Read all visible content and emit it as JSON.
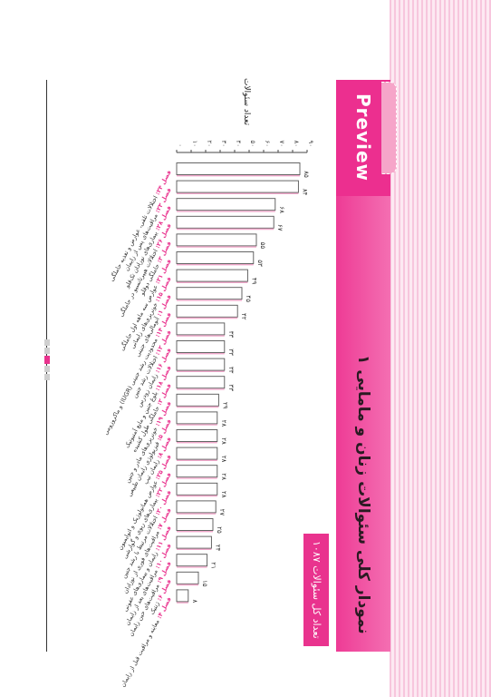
{
  "header": {
    "preview_label": "Preview"
  },
  "title": "نمودار کلی سئوالات زنان و مامایی ۱",
  "total_label": "تعداد کل سئوالات ۱۰۸۷",
  "colors": {
    "accent": "#e9338e",
    "bar_fill": "#ffffff",
    "bar_stroke": "#555555",
    "label_highlight": "#e9338e",
    "label_text": "#333333"
  },
  "chart_data": {
    "type": "bar",
    "orientation": "horizontal-rotated",
    "title": "نمودار کلی سئوالات زنان و مامایی ۱",
    "ylabel": "تعداد سئوالات",
    "ylim": [
      0,
      90
    ],
    "ticks": [
      0,
      10,
      20,
      30,
      40,
      50,
      60,
      70,
      80,
      90
    ],
    "tick_labels": [
      "۰",
      "۱۰",
      "۲۰",
      "۳۰",
      "۴۰",
      "۵۰",
      "۶۰",
      "۷۰",
      "۸۰",
      "۹۰"
    ],
    "grid": false,
    "categories": [
      {
        "chapter": "فصل ۲۴:",
        "name": "اختلالات تلقی، عوارض و تغذیه حاملگی",
        "value": 85,
        "label": "۸۵"
      },
      {
        "chapter": "فصل ۲۳:",
        "name": "مراقبت‌های پس از زایمان",
        "value": 84,
        "label": "۸۴"
      },
      {
        "chapter": "فصل ۲۸:",
        "name": "بیماری‌های نوزادان تک‌قلو",
        "value": 68,
        "label": "۶۸"
      },
      {
        "chapter": "فصل ۲۶:",
        "name": "اختلالات هیپرتانسیو در حاملگی",
        "value": 67,
        "label": "۶۷"
      },
      {
        "chapter": "فصل ۳:",
        "name": "حاملگی دوقلو",
        "value": 55,
        "label": "۵۵"
      },
      {
        "chapter": "فصل ۲۱:",
        "name": "عوارض سه ماهه اول حاملگی",
        "value": 53,
        "label": "۵۳"
      },
      {
        "chapter": "فصل ۱۵:",
        "name": "خونریزی‌های زایمانی",
        "value": 49,
        "label": "۴۹"
      },
      {
        "chapter": "فصل ۱:",
        "name": "آنومالی‌های جنینی",
        "value": 45,
        "label": "۴۵"
      },
      {
        "chapter": "فصل ۱۴:",
        "name": "محدودیت رشد جنینی (IUGR) و ماکروزومی",
        "value": 42,
        "label": "۴۲"
      },
      {
        "chapter": "فصل ۱۲:",
        "name": "اختلالات رشد جنین",
        "value": 33,
        "label": "۳۳"
      },
      {
        "chapter": "فصل ۱۶:",
        "name": "زایمان زودرس",
        "value": 33,
        "label": "۳۳"
      },
      {
        "chapter": "فصل ۱۸:",
        "name": "بلوغ جنین و مایع آمنیوتیک",
        "value": 33,
        "label": "۳۳"
      },
      {
        "chapter": "فصل ۲:",
        "name": "حاملگی طول کشیده",
        "value": 33,
        "label": "۳۳"
      },
      {
        "chapter": "فصل ۱۹:",
        "name": "خونریزی‌های مادر و جنین",
        "value": 29,
        "label": "۲۹"
      },
      {
        "chapter": "فصل ۵:",
        "name": "فیزیولوژی زایمان طبیعی",
        "value": 28,
        "label": "۲۸"
      },
      {
        "chapter": "فصل ۸:",
        "name": "زایمان تیپ",
        "value": 28,
        "label": "۲۸"
      },
      {
        "chapter": "فصل ۲۵:",
        "name": "عوارض هماتولوژیک و اتوایمیون",
        "value": 28,
        "label": "۲۸"
      },
      {
        "chapter": "فصل ۲۲:",
        "name": "بیماری‌های ریوی و گوارشی",
        "value": 28,
        "label": "۲۸"
      },
      {
        "chapter": "فصل ۲۰:",
        "name": "اختلالات مرتبط با رشد جنین",
        "value": 28,
        "label": "۲۸"
      },
      {
        "chapter": "فصل ۷:",
        "name": "مراقبت‌های فوری از نوزادان",
        "value": 27,
        "label": "۲۷"
      },
      {
        "chapter": "فصل ۱۱:",
        "name": "زایمان و بیماری‌های عفونی",
        "value": 25,
        "label": "۲۵"
      },
      {
        "chapter": "فصل ۱۰:",
        "name": "مراقبت‌های بعد از زایمان",
        "value": 24,
        "label": "۲۴"
      },
      {
        "chapter": "فصل ۹:",
        "name": "مراقبت‌های حین زایمان",
        "value": 21,
        "label": "۲۱"
      },
      {
        "chapter": "فصل ۶:",
        "name": "ژنتیک",
        "value": 15,
        "label": "۱۵"
      },
      {
        "chapter": "فصل ۴:",
        "name": "معاینه و مراقبت قبل از زایمان",
        "value": 8,
        "label": "۸"
      }
    ]
  }
}
